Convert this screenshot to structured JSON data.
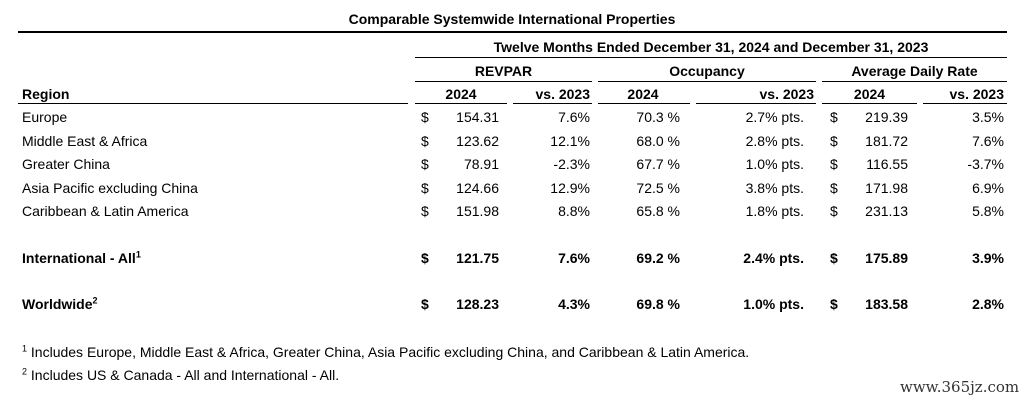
{
  "title": "Comparable Systemwide International Properties",
  "period_header": "Twelve Months Ended December 31, 2024 and December 31, 2023",
  "groups": {
    "revpar": "REVPAR",
    "occupancy": "Occupancy",
    "adr": "Average Daily Rate"
  },
  "columns": {
    "region": "Region",
    "y2024": "2024",
    "vs2023": "vs. 2023"
  },
  "currency": "$",
  "rows": [
    {
      "region": "Europe",
      "revpar": "154.31",
      "revpar_chg": "7.6%",
      "occ": "70.3 %",
      "occ_chg": "2.7% pts.",
      "adr": "219.39",
      "adr_chg": "3.5%"
    },
    {
      "region": "Middle East & Africa",
      "revpar": "123.62",
      "revpar_chg": "12.1%",
      "occ": "68.0 %",
      "occ_chg": "2.8% pts.",
      "adr": "181.72",
      "adr_chg": "7.6%"
    },
    {
      "region": "Greater China",
      "revpar": "78.91",
      "revpar_chg": "-2.3%",
      "occ": "67.7 %",
      "occ_chg": "1.0% pts.",
      "adr": "116.55",
      "adr_chg": "-3.7%"
    },
    {
      "region": "Asia Pacific excluding China",
      "revpar": "124.66",
      "revpar_chg": "12.9%",
      "occ": "72.5 %",
      "occ_chg": "3.8% pts.",
      "adr": "171.98",
      "adr_chg": "6.9%"
    },
    {
      "region": "Caribbean & Latin America",
      "revpar": "151.98",
      "revpar_chg": "8.8%",
      "occ": "65.8 %",
      "occ_chg": "1.8% pts.",
      "adr": "231.13",
      "adr_chg": "5.8%"
    }
  ],
  "totals": [
    {
      "region": "International - All",
      "sup": "1",
      "revpar": "121.75",
      "revpar_chg": "7.6%",
      "occ": "69.2 %",
      "occ_chg": "2.4% pts.",
      "adr": "175.89",
      "adr_chg": "3.9%"
    },
    {
      "region": "Worldwide",
      "sup": "2",
      "revpar": "128.23",
      "revpar_chg": "4.3%",
      "occ": "69.8 %",
      "occ_chg": "1.0% pts.",
      "adr": "183.58",
      "adr_chg": "2.8%"
    }
  ],
  "footnotes": [
    {
      "mark": "1",
      "text": "Includes Europe, Middle East & Africa, Greater China, Asia Pacific excluding China, and Caribbean & Latin America."
    },
    {
      "mark": "2",
      "text": "Includes US & Canada - All and International - All."
    }
  ],
  "watermark": "www.365jz.com"
}
